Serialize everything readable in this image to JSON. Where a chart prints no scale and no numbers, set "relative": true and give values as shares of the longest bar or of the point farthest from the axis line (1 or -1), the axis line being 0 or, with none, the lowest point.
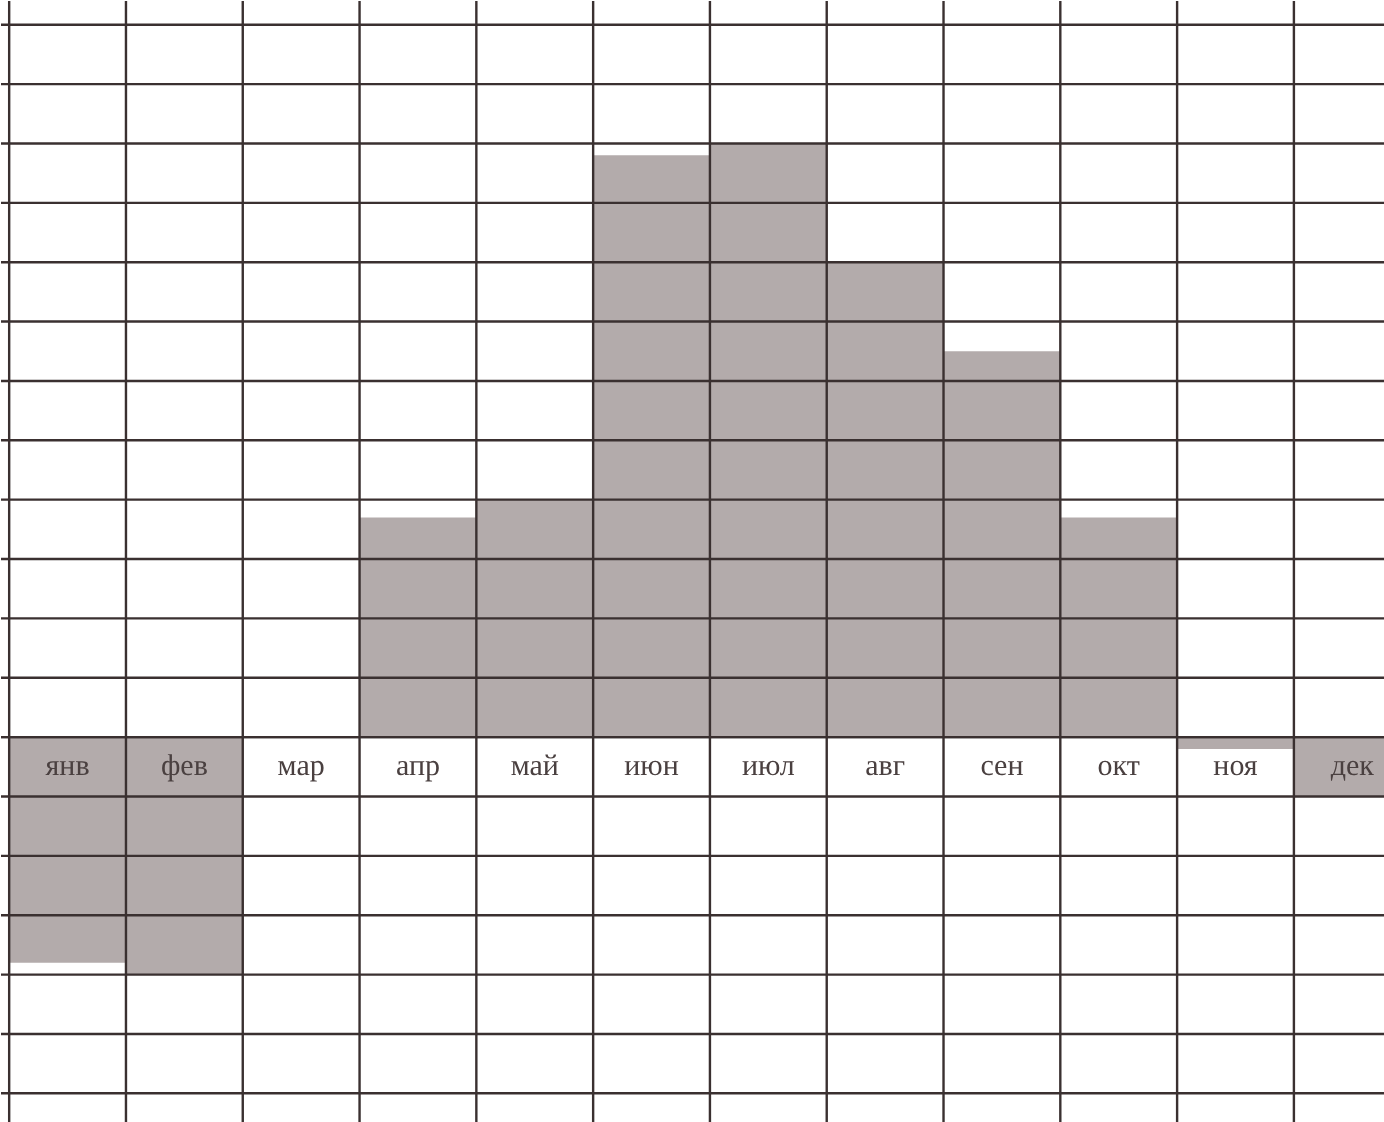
{
  "chart_data": {
    "type": "bar",
    "relative": true,
    "grid": true,
    "color": "#b3abab",
    "categories": [
      "янв",
      "фев",
      "мар",
      "апр",
      "май",
      "июн",
      "июл",
      "авг",
      "сен",
      "окт",
      "ноя",
      "дек"
    ],
    "values": [
      -0.38,
      -0.4,
      0,
      0.37,
      0.4,
      0.98,
      1,
      0.8,
      0.65,
      0.37,
      -0.02,
      -0.1
    ]
  }
}
